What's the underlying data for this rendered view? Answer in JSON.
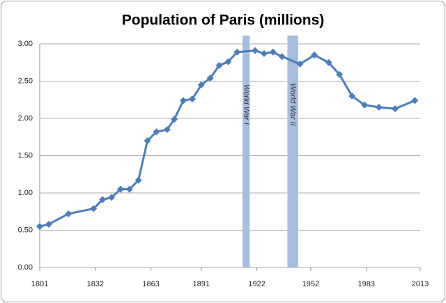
{
  "chart_data": {
    "type": "line",
    "title": "Population of Paris (millions)",
    "x": [
      1801,
      1806,
      1817,
      1831,
      1836,
      1841,
      1846,
      1851,
      1856,
      1861,
      1866,
      1872,
      1876,
      1881,
      1886,
      1891,
      1896,
      1901,
      1906,
      1911,
      1921,
      1926,
      1931,
      1936,
      1946,
      1954,
      1962,
      1968,
      1975,
      1982,
      1990,
      1999,
      2010
    ],
    "series": [
      {
        "name": "Population",
        "color": "#4a7ebb",
        "values": [
          0.55,
          0.58,
          0.72,
          0.79,
          0.91,
          0.94,
          1.05,
          1.05,
          1.17,
          1.7,
          1.82,
          1.85,
          1.99,
          2.24,
          2.26,
          2.45,
          2.54,
          2.71,
          2.76,
          2.89,
          2.91,
          2.87,
          2.89,
          2.83,
          2.73,
          2.85,
          2.75,
          2.59,
          2.3,
          2.18,
          2.15,
          2.13,
          2.24
        ]
      }
    ],
    "bands": [
      {
        "label": "World War I",
        "start": 1914,
        "end": 1918,
        "color": "#a4bde0"
      },
      {
        "label": "World War II",
        "start": 1939,
        "end": 1945,
        "color": "#a4bde0"
      }
    ],
    "xlim": [
      1801,
      2013
    ],
    "xticks": [
      1801,
      1832,
      1863,
      1891,
      1922,
      1952,
      1983,
      2013
    ],
    "ylim": [
      0,
      3
    ],
    "yticks": [
      {
        "value": 0,
        "label": "0.00"
      },
      {
        "value": 0.5,
        "label": "0.50"
      },
      {
        "value": 1,
        "label": "1.00"
      },
      {
        "value": 1.5,
        "label": "1.50"
      },
      {
        "value": 2,
        "label": "2.00"
      },
      {
        "value": 2.5,
        "label": "2.50"
      },
      {
        "value": 3,
        "label": "3.00"
      }
    ],
    "grid": true
  }
}
